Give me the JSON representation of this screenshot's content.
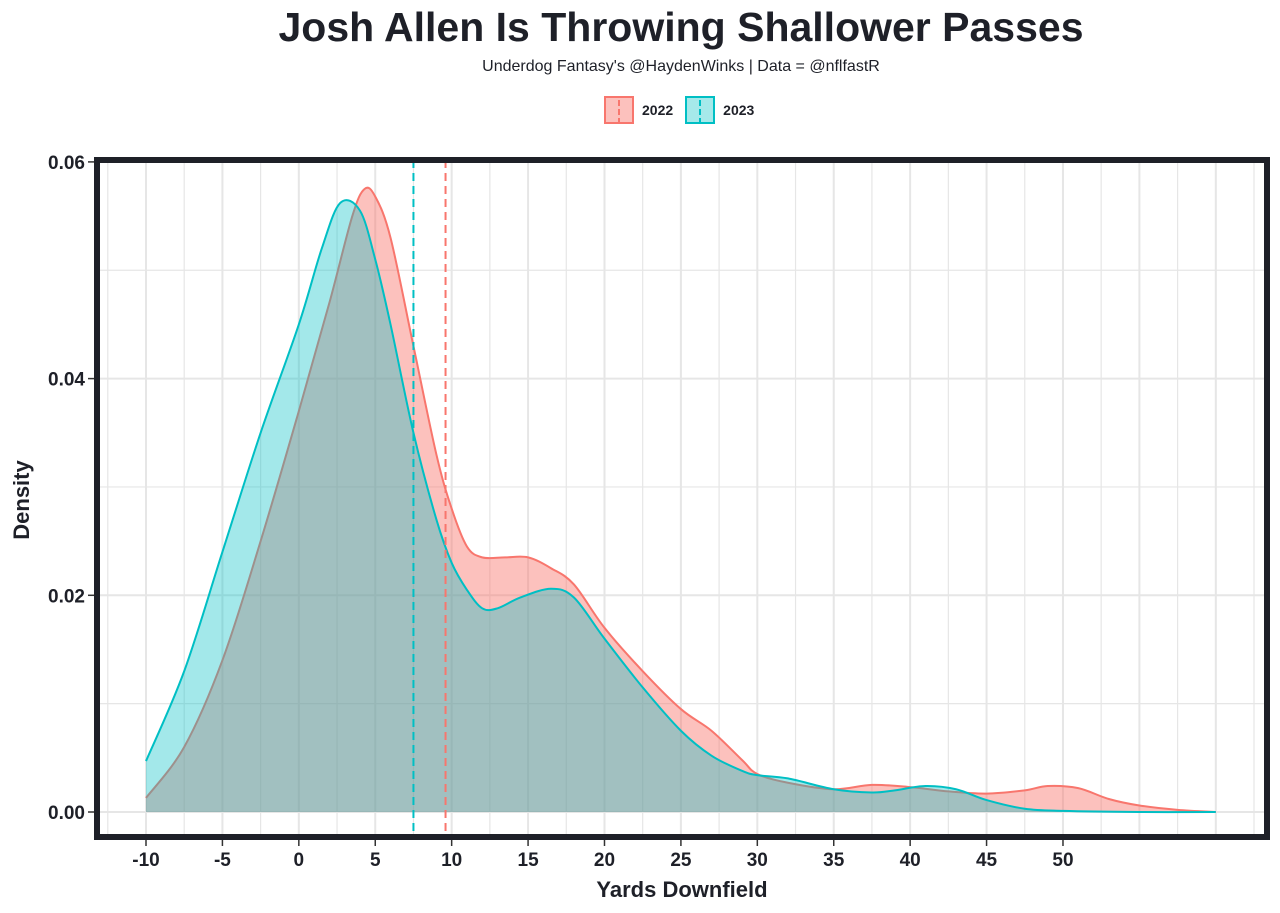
{
  "chart_data": {
    "type": "area",
    "title": "Josh Allen Is Throwing Shallower Passes",
    "subtitle": "Underdog Fantasy's @HaydenWinks | Data = @nflfastR",
    "xlabel": "Yards Downfield",
    "ylabel": "Density",
    "xlim": [
      -10,
      60
    ],
    "ylim": [
      0,
      0.06
    ],
    "x_ticks": [
      "-10",
      "-5",
      "0",
      "5",
      "10",
      "15",
      "20",
      "25",
      "30",
      "35",
      "40",
      "45",
      "50"
    ],
    "y_ticks": [
      "0.00",
      "0.02",
      "0.04",
      "0.06"
    ],
    "grid": true,
    "legend_position": "top",
    "series": [
      {
        "name": "2022",
        "color": "#F8766D",
        "mean": 9.6,
        "x": [
          -10,
          -7.5,
          -5,
          -2.5,
          0,
          2,
          3.5,
          4.3,
          5,
          6,
          7.5,
          9,
          10,
          11,
          12,
          13.5,
          15,
          16.5,
          18,
          20,
          22.5,
          25,
          27,
          29,
          30,
          32,
          35,
          37.5,
          40,
          42.5,
          45,
          47.5,
          49,
          51,
          53,
          55,
          57.5,
          60
        ],
        "y": [
          0.0013,
          0.006,
          0.014,
          0.025,
          0.037,
          0.047,
          0.055,
          0.0575,
          0.0568,
          0.053,
          0.043,
          0.033,
          0.028,
          0.0245,
          0.0235,
          0.0235,
          0.0235,
          0.0225,
          0.021,
          0.017,
          0.013,
          0.0095,
          0.0075,
          0.0048,
          0.0035,
          0.0027,
          0.0021,
          0.0025,
          0.0023,
          0.0019,
          0.0017,
          0.002,
          0.0024,
          0.0022,
          0.0012,
          0.0006,
          0.0002,
          0.0
        ]
      },
      {
        "name": "2023",
        "color": "#00BFC4",
        "mean": 7.5,
        "x": [
          -10,
          -7.5,
          -5,
          -2.5,
          0,
          1.5,
          2.7,
          4,
          5,
          6,
          7.5,
          9,
          10,
          11,
          12,
          13,
          14.5,
          16.5,
          18,
          20,
          22.5,
          25,
          27,
          29,
          30,
          32,
          35,
          37.5,
          39,
          41,
          43,
          45,
          47.5,
          50,
          55,
          60
        ],
        "y": [
          0.0047,
          0.013,
          0.024,
          0.035,
          0.045,
          0.052,
          0.0562,
          0.0555,
          0.051,
          0.045,
          0.035,
          0.027,
          0.023,
          0.0205,
          0.0188,
          0.0188,
          0.0198,
          0.0206,
          0.0198,
          0.016,
          0.0115,
          0.0075,
          0.0052,
          0.0038,
          0.0034,
          0.0031,
          0.0021,
          0.0018,
          0.002,
          0.0024,
          0.0021,
          0.0011,
          0.0003,
          0.0001,
          0.0,
          0.0
        ]
      }
    ]
  }
}
